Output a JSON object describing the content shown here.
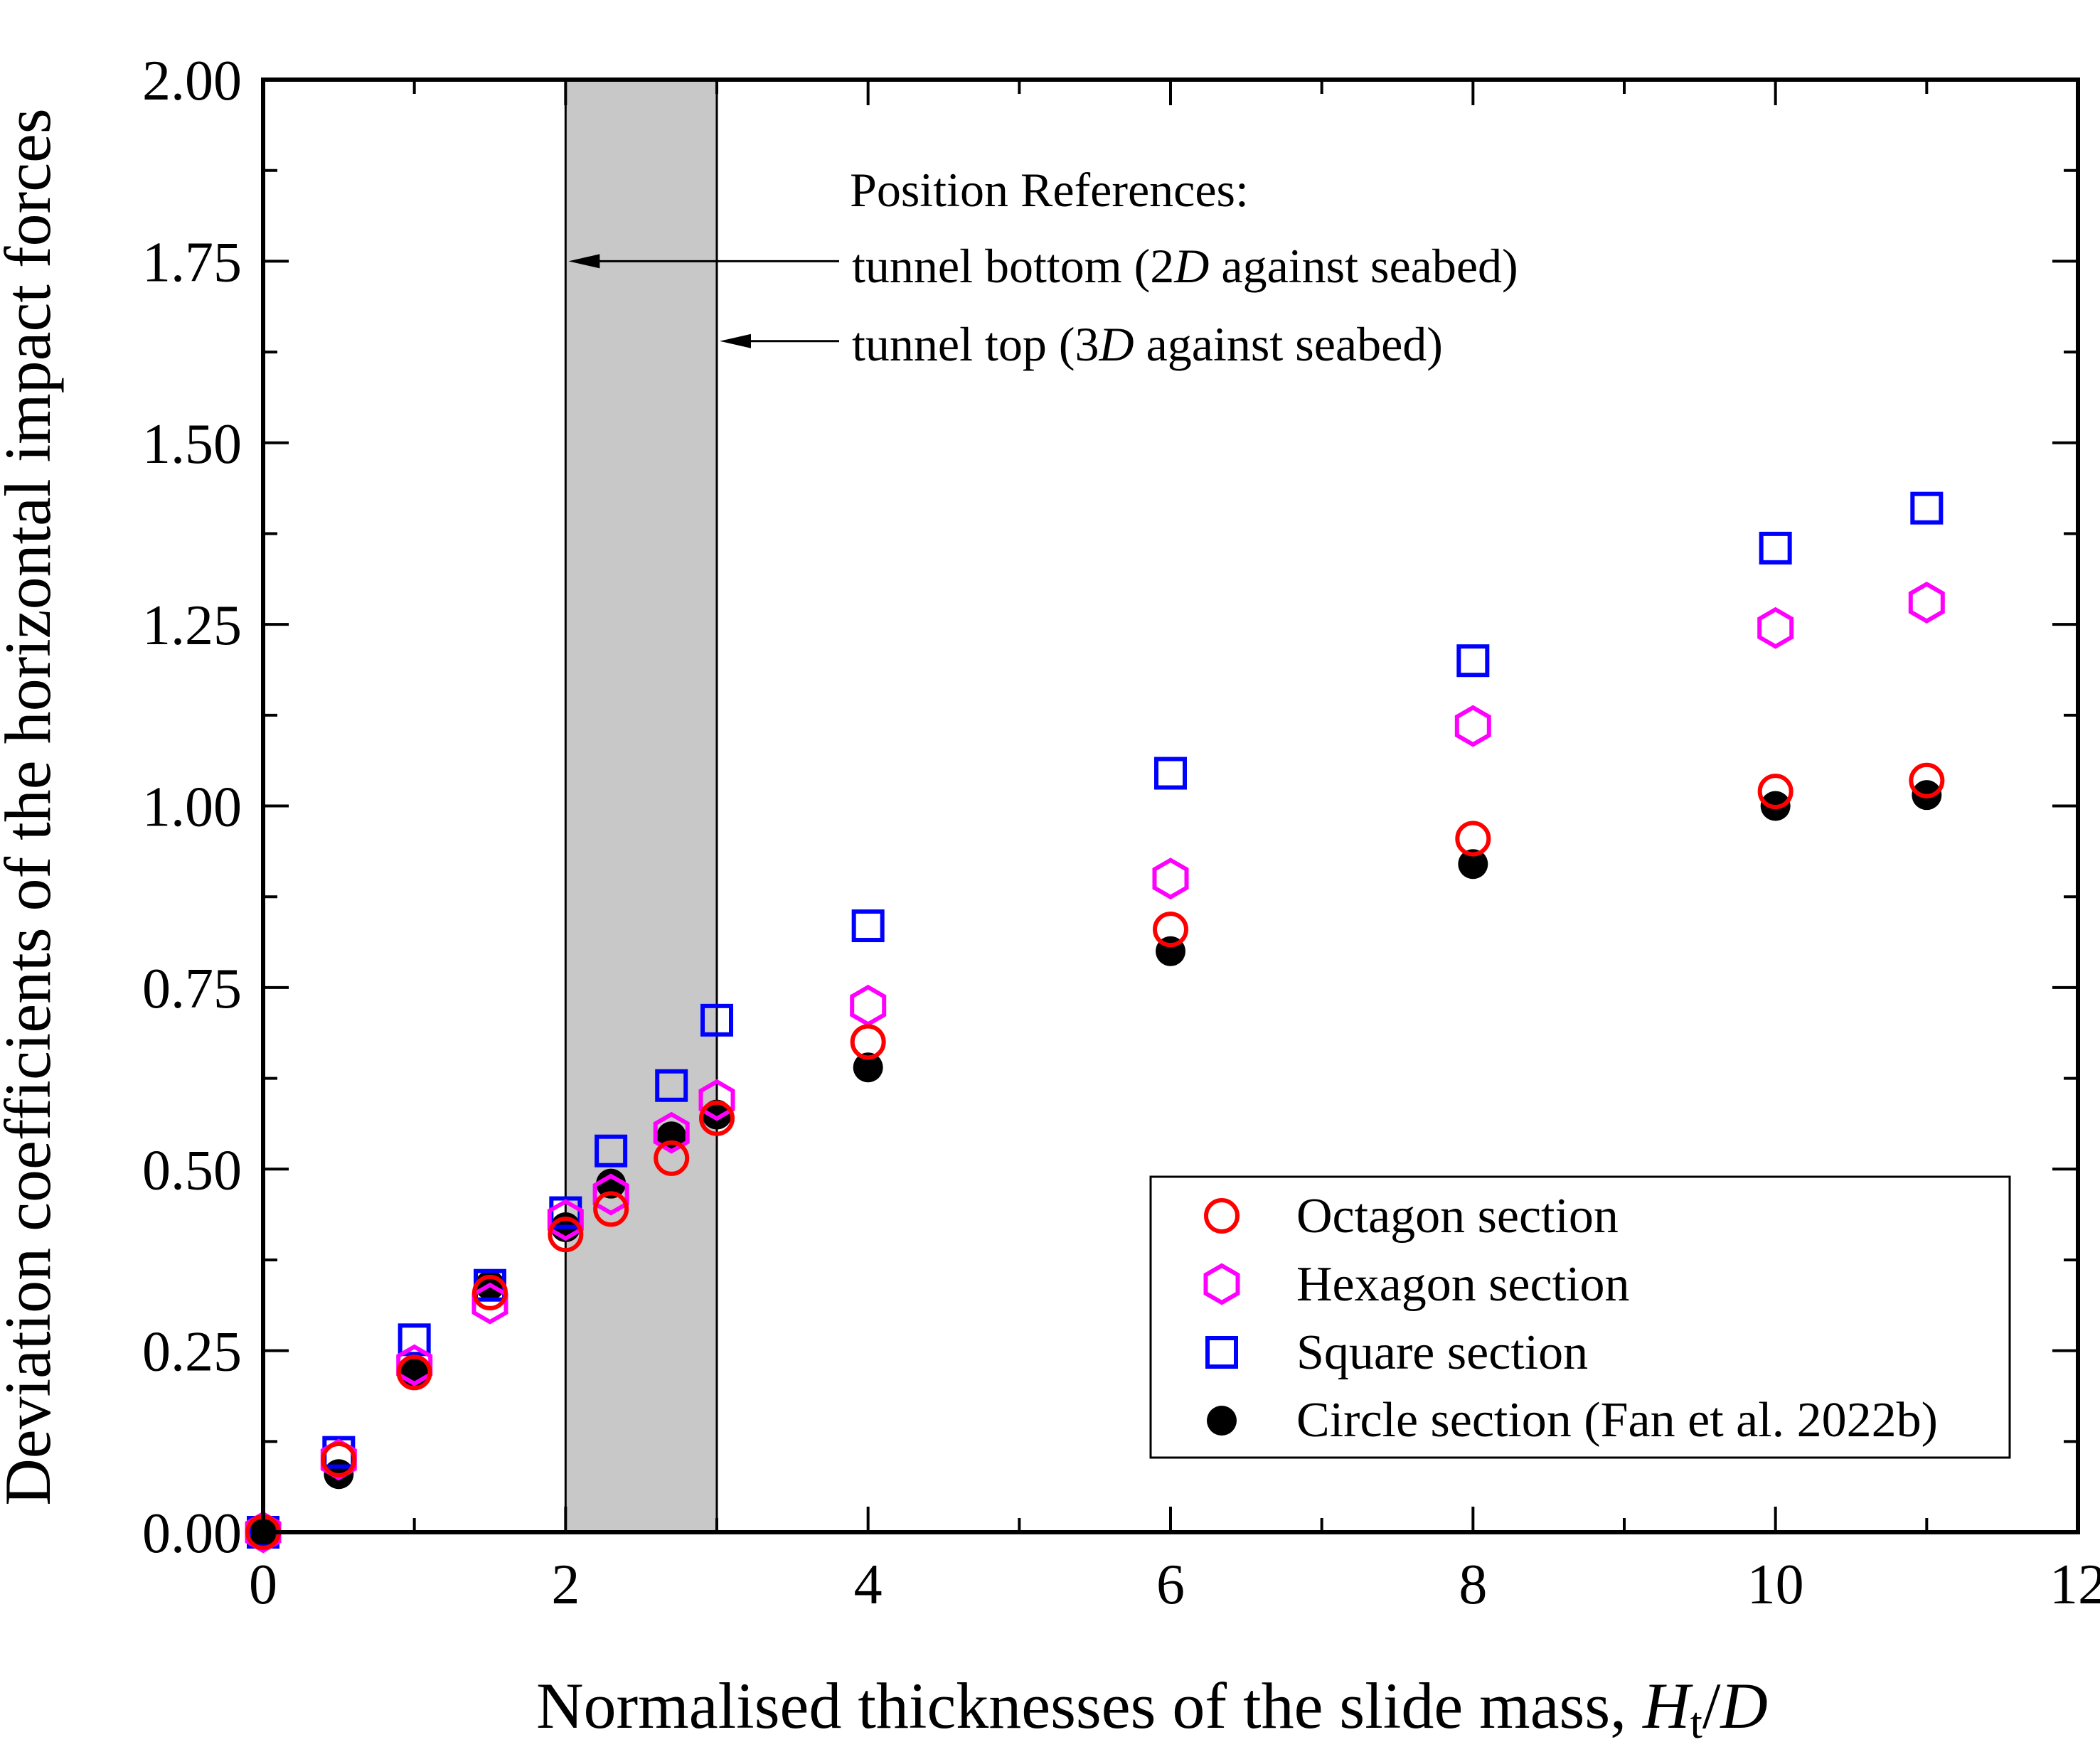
{
  "chart_data": {
    "type": "scatter",
    "xlabel": {
      "prefix": "Normalised thicknesses of the slide mass, ",
      "var": "H",
      "sub": "t",
      "suffix": "/",
      "var2": "D"
    },
    "ylabel": "Deviation coefficients of the horizontal impact forces",
    "xlim": [
      0,
      12
    ],
    "ylim": [
      0,
      2
    ],
    "x_ticks": [
      0,
      2,
      4,
      6,
      8,
      10,
      12
    ],
    "x_tick_labels": [
      "0",
      "2",
      "4",
      "6",
      "8",
      "10",
      "12"
    ],
    "y_ticks": [
      0,
      0.25,
      0.5,
      0.75,
      1.0,
      1.25,
      1.5,
      1.75,
      2.0
    ],
    "y_tick_labels": [
      "0.00",
      "0.25",
      "0.50",
      "0.75",
      "1.00",
      "1.25",
      "1.50",
      "1.75",
      "2.00"
    ],
    "shaded_region": {
      "x": [
        2,
        3
      ],
      "color": "#c8c8c8"
    },
    "annotations": {
      "header": "Position References:",
      "bottom": {
        "prefix": "tunnel bottom (2",
        "var": "D",
        "suffix": " against seabed)",
        "arrow_x": 2,
        "arrow_y": 1.75
      },
      "top": {
        "prefix": "tunnel top (3",
        "var": "D",
        "suffix": " against seabed)",
        "arrow_x": 3,
        "arrow_y": 1.64
      }
    },
    "legend_position": "bottom-right",
    "series": [
      {
        "name": "Octagon section",
        "marker": "circle-open",
        "color": "#ff0000",
        "x": [
          0,
          0.5,
          1,
          1.5,
          2,
          2.3,
          2.7,
          3,
          4,
          6,
          8,
          10,
          11
        ],
        "y": [
          0.0,
          0.1,
          0.22,
          0.33,
          0.41,
          0.445,
          0.515,
          0.57,
          0.675,
          0.83,
          0.955,
          1.02,
          1.035
        ]
      },
      {
        "name": "Hexagon section",
        "marker": "hexagon-open",
        "color": "#ff00ff",
        "x": [
          0,
          0.5,
          1,
          1.5,
          2,
          2.3,
          2.7,
          3,
          4,
          6,
          8,
          10,
          11
        ],
        "y": [
          0.0,
          0.1,
          0.23,
          0.315,
          0.43,
          0.465,
          0.55,
          0.595,
          0.725,
          0.9,
          1.11,
          1.245,
          1.28
        ]
      },
      {
        "name": "Square section",
        "marker": "square-open",
        "color": "#0000ff",
        "x": [
          0,
          0.5,
          1,
          1.5,
          2,
          2.3,
          2.7,
          3,
          4,
          6,
          8,
          10,
          11
        ],
        "y": [
          0.0,
          0.11,
          0.265,
          0.34,
          0.44,
          0.525,
          0.615,
          0.705,
          0.835,
          1.045,
          1.2,
          1.355,
          1.41
        ]
      },
      {
        "name": "Circle section (Fan et al. 2022b)",
        "marker": "circle-filled",
        "color": "#000000",
        "x": [
          0,
          0.5,
          1,
          1.5,
          2,
          2.3,
          2.7,
          3,
          4,
          6,
          8,
          10,
          11
        ],
        "y": [
          0.0,
          0.08,
          0.22,
          0.34,
          0.42,
          0.48,
          0.545,
          0.575,
          0.64,
          0.8,
          0.92,
          1.0,
          1.015
        ]
      }
    ]
  }
}
